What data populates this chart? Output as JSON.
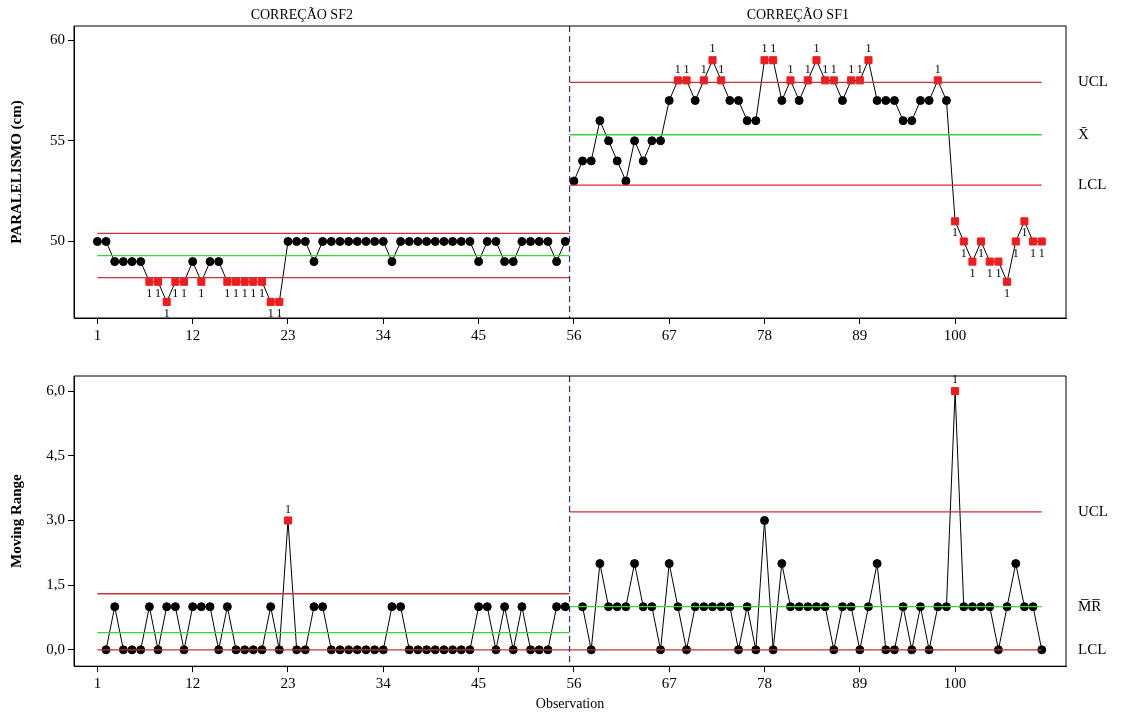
{
  "chart_data": [
    {
      "type": "line",
      "ylabel": "PARALELISMO (cm)",
      "xlim": [
        -1.7,
        112.8
      ],
      "xticks": [
        1,
        12,
        23,
        34,
        45,
        56,
        67,
        78,
        89,
        100
      ],
      "ylim": [
        46.2,
        60.7
      ],
      "yticks": [
        50,
        55,
        60
      ],
      "legend": false,
      "grid": false,
      "marker": "circle",
      "ref_lines": [
        {
          "axis": "x",
          "value": 55.5,
          "color": "#2a2a8a",
          "line_style": "dashed"
        }
      ],
      "annotations": [
        "CORREÇÃO SF2",
        "CORREÇÃO SF1",
        {
          "text": "1",
          "x": 7,
          "y": 48
        },
        {
          "text": "1",
          "x": 8,
          "y": 48
        },
        {
          "text": "1",
          "x": 9,
          "y": 47
        },
        {
          "text": "1",
          "x": 10,
          "y": 48
        },
        {
          "text": "1",
          "x": 11,
          "y": 48
        },
        {
          "text": "1",
          "x": 13,
          "y": 48
        },
        {
          "text": "1",
          "x": 16,
          "y": 48
        },
        {
          "text": "1",
          "x": 17,
          "y": 48
        },
        {
          "text": "1",
          "x": 18,
          "y": 48
        },
        {
          "text": "1",
          "x": 19,
          "y": 48
        },
        {
          "text": "1",
          "x": 20,
          "y": 48
        },
        {
          "text": "1",
          "x": 21,
          "y": 47
        },
        {
          "text": "1",
          "x": 22,
          "y": 47
        },
        {
          "text": "1",
          "x": 68,
          "y": 58
        },
        {
          "text": "1",
          "x": 69,
          "y": 58
        },
        {
          "text": "1",
          "x": 71,
          "y": 58
        },
        {
          "text": "1",
          "x": 72,
          "y": 59
        },
        {
          "text": "1",
          "x": 73,
          "y": 58
        },
        {
          "text": "1",
          "x": 78,
          "y": 59
        },
        {
          "text": "1",
          "x": 79,
          "y": 59
        },
        {
          "text": "1",
          "x": 81,
          "y": 58
        },
        {
          "text": "1",
          "x": 83,
          "y": 58
        },
        {
          "text": "1",
          "x": 84,
          "y": 59
        },
        {
          "text": "1",
          "x": 85,
          "y": 58
        },
        {
          "text": "1",
          "x": 86,
          "y": 58
        },
        {
          "text": "1",
          "x": 88,
          "y": 58
        },
        {
          "text": "1",
          "x": 89,
          "y": 58
        },
        {
          "text": "1",
          "x": 90,
          "y": 59
        },
        {
          "text": "1",
          "x": 98,
          "y": 58
        },
        {
          "text": "1",
          "x": 100,
          "y": 51
        },
        {
          "text": "1",
          "x": 101,
          "y": 50
        },
        {
          "text": "1",
          "x": 102,
          "y": 49
        },
        {
          "text": "1",
          "x": 103,
          "y": 50
        },
        {
          "text": "1",
          "x": 104,
          "y": 49
        },
        {
          "text": "1",
          "x": 105,
          "y": 49
        },
        {
          "text": "1",
          "x": 106,
          "y": 48
        },
        {
          "text": "1",
          "x": 107,
          "y": 50
        },
        {
          "text": "1",
          "x": 108,
          "y": 51
        },
        {
          "text": "1",
          "x": 109,
          "y": 50
        },
        {
          "text": "1",
          "x": 110,
          "y": 50
        }
      ],
      "series": [
        {
          "type": "line",
          "color": "#c8323a",
          "marker": "none",
          "x": [
            1,
            55.5
          ],
          "values": [
            50.4,
            50.4
          ]
        },
        {
          "type": "line",
          "color": "#3cd23c",
          "marker": "none",
          "x": [
            1,
            55.5
          ],
          "values": [
            49.3,
            49.3
          ]
        },
        {
          "type": "line",
          "color": "#c8323a",
          "marker": "none",
          "x": [
            1,
            55.5
          ],
          "values": [
            48.2,
            48.2
          ]
        },
        {
          "type": "line",
          "name": "UCL",
          "color": "#c8323a",
          "marker": "none",
          "x": [
            55.5,
            110
          ],
          "values": [
            57.9,
            57.9
          ]
        },
        {
          "type": "line",
          "name": "X̄",
          "color": "#3cd23c",
          "marker": "none",
          "x": [
            55.5,
            110
          ],
          "values": [
            55.3,
            55.3
          ]
        },
        {
          "type": "line",
          "name": "LCL",
          "color": "#c8323a",
          "marker": "none",
          "x": [
            55.5,
            110
          ],
          "values": [
            52.8,
            52.8
          ]
        },
        {
          "type": "line",
          "color": "#000000",
          "x": [
            1,
            2,
            3,
            4,
            5,
            6,
            7,
            8,
            9,
            10,
            11,
            12,
            13,
            14,
            15,
            16,
            17,
            18,
            19,
            20,
            21,
            22,
            23,
            24,
            25,
            26,
            27,
            28,
            29,
            30,
            31,
            32,
            33,
            34,
            35,
            36,
            37,
            38,
            39,
            40,
            41,
            42,
            43,
            44,
            45,
            46,
            47,
            48,
            49,
            50,
            51,
            52,
            53,
            54,
            55
          ],
          "values": [
            50,
            50,
            49,
            49,
            49,
            49,
            48,
            48,
            47,
            48,
            48,
            49,
            48,
            49,
            49,
            48,
            48,
            48,
            48,
            48,
            47,
            47,
            50,
            50,
            50,
            49,
            50,
            50,
            50,
            50,
            50,
            50,
            50,
            50,
            49,
            50,
            50,
            50,
            50,
            50,
            50,
            50,
            50,
            50,
            49,
            50,
            50,
            49,
            49,
            50,
            50,
            50,
            50,
            49,
            50
          ],
          "colors": [
            "#000000",
            "#000000",
            "#000000",
            "#000000",
            "#000000",
            "#000000",
            "#ee1c1c",
            "#ee1c1c",
            "#ee1c1c",
            "#ee1c1c",
            "#ee1c1c",
            "#000000",
            "#ee1c1c",
            "#000000",
            "#000000",
            "#ee1c1c",
            "#ee1c1c",
            "#ee1c1c",
            "#ee1c1c",
            "#ee1c1c",
            "#ee1c1c",
            "#ee1c1c",
            "#000000",
            "#000000",
            "#000000",
            "#000000",
            "#000000",
            "#000000",
            "#000000",
            "#000000",
            "#000000",
            "#000000",
            "#000000",
            "#000000",
            "#000000",
            "#000000",
            "#000000",
            "#000000",
            "#000000",
            "#000000",
            "#000000",
            "#000000",
            "#000000",
            "#000000",
            "#000000",
            "#000000",
            "#000000",
            "#000000",
            "#000000",
            "#000000",
            "#000000",
            "#000000",
            "#000000",
            "#000000",
            "#000000"
          ]
        },
        {
          "type": "line",
          "color": "#000000",
          "x": [
            56,
            57,
            58,
            59,
            60,
            61,
            62,
            63,
            64,
            65,
            66,
            67,
            68,
            69,
            70,
            71,
            72,
            73,
            74,
            75,
            76,
            77,
            78,
            79,
            80,
            81,
            82,
            83,
            84,
            85,
            86,
            87,
            88,
            89,
            90,
            91,
            92,
            93,
            94,
            95,
            96,
            97,
            98,
            99,
            100,
            101,
            102,
            103,
            104,
            105,
            106,
            107,
            108,
            109,
            110
          ],
          "values": [
            53,
            54,
            54,
            56,
            55,
            54,
            53,
            55,
            54,
            55,
            55,
            57,
            58,
            58,
            57,
            58,
            59,
            58,
            57,
            57,
            56,
            56,
            59,
            59,
            57,
            58,
            57,
            58,
            59,
            58,
            58,
            57,
            58,
            58,
            59,
            57,
            57,
            57,
            56,
            56,
            57,
            57,
            58,
            57,
            51,
            50,
            49,
            50,
            49,
            49,
            48,
            50,
            51,
            50,
            50
          ],
          "colors": [
            "#000000",
            "#000000",
            "#000000",
            "#000000",
            "#000000",
            "#000000",
            "#000000",
            "#000000",
            "#000000",
            "#000000",
            "#000000",
            "#000000",
            "#ee1c1c",
            "#ee1c1c",
            "#000000",
            "#ee1c1c",
            "#ee1c1c",
            "#ee1c1c",
            "#000000",
            "#000000",
            "#000000",
            "#000000",
            "#ee1c1c",
            "#ee1c1c",
            "#000000",
            "#ee1c1c",
            "#000000",
            "#ee1c1c",
            "#ee1c1c",
            "#ee1c1c",
            "#ee1c1c",
            "#000000",
            "#ee1c1c",
            "#ee1c1c",
            "#ee1c1c",
            "#000000",
            "#000000",
            "#000000",
            "#000000",
            "#000000",
            "#000000",
            "#000000",
            "#ee1c1c",
            "#000000",
            "#ee1c1c",
            "#ee1c1c",
            "#ee1c1c",
            "#ee1c1c",
            "#ee1c1c",
            "#ee1c1c",
            "#ee1c1c",
            "#ee1c1c",
            "#ee1c1c",
            "#ee1c1c",
            "#ee1c1c"
          ]
        }
      ]
    },
    {
      "type": "line",
      "ylabel": "Moving Range",
      "xlabel": "Observation",
      "xlim": [
        -1.7,
        112.8
      ],
      "xticks": [
        1,
        12,
        23,
        34,
        45,
        56,
        67,
        78,
        89,
        100
      ],
      "ylim": [
        -0.38,
        6.35
      ],
      "yticks": [
        {
          "value": 0,
          "label": "0,0"
        },
        {
          "value": 1.5,
          "label": "1,5"
        },
        {
          "value": 3,
          "label": "3,0"
        },
        {
          "value": 4.5,
          "label": "4,5"
        },
        {
          "value": 6,
          "label": "6,0"
        }
      ],
      "legend": false,
      "grid": false,
      "marker": "circle",
      "ref_lines": [
        {
          "axis": "x",
          "value": 55.5,
          "color": "#2a2a8a",
          "line_style": "dashed"
        }
      ],
      "annotations": [
        {
          "text": "1",
          "x": 23,
          "y": 3
        },
        {
          "text": "1",
          "x": 100,
          "y": 6
        }
      ],
      "series": [
        {
          "type": "line",
          "color": "#c8323a",
          "marker": "none",
          "x": [
            1,
            55.5
          ],
          "values": [
            1.3,
            1.3
          ]
        },
        {
          "type": "line",
          "color": "#3cd23c",
          "marker": "none",
          "x": [
            1,
            55.5
          ],
          "values": [
            0.4,
            0.4
          ]
        },
        {
          "type": "line",
          "name": "UCL",
          "color": "#c8323a",
          "marker": "none",
          "x": [
            55.5,
            110
          ],
          "values": [
            3.2,
            3.2
          ]
        },
        {
          "type": "line",
          "name": "M̅R̅",
          "color": "#3cd23c",
          "marker": "none",
          "x": [
            55.5,
            110
          ],
          "values": [
            1.0,
            1.0
          ]
        },
        {
          "type": "line",
          "name": "LCL",
          "color": "#c8323a",
          "marker": "none",
          "x": [
            1,
            110
          ],
          "values": [
            0,
            0
          ]
        },
        {
          "type": "line",
          "color": "#000000",
          "x": [
            2,
            3,
            4,
            5,
            6,
            7,
            8,
            9,
            10,
            11,
            12,
            13,
            14,
            15,
            16,
            17,
            18,
            19,
            20,
            21,
            22,
            23,
            24,
            25,
            26,
            27,
            28,
            29,
            30,
            31,
            32,
            33,
            34,
            35,
            36,
            37,
            38,
            39,
            40,
            41,
            42,
            43,
            44,
            45,
            46,
            47,
            48,
            49,
            50,
            51,
            52,
            53,
            54,
            55
          ],
          "values": [
            0,
            1,
            0,
            0,
            0,
            1,
            0,
            1,
            1,
            0,
            1,
            1,
            1,
            0,
            1,
            0,
            0,
            0,
            0,
            1,
            0,
            3,
            0,
            0,
            1,
            1,
            0,
            0,
            0,
            0,
            0,
            0,
            0,
            1,
            1,
            0,
            0,
            0,
            0,
            0,
            0,
            0,
            0,
            1,
            1,
            0,
            1,
            0,
            1,
            0,
            0,
            0,
            1,
            1
          ],
          "colors": [
            "#000000",
            "#000000",
            "#000000",
            "#000000",
            "#000000",
            "#000000",
            "#000000",
            "#000000",
            "#000000",
            "#000000",
            "#000000",
            "#000000",
            "#000000",
            "#000000",
            "#000000",
            "#000000",
            "#000000",
            "#000000",
            "#000000",
            "#000000",
            "#000000",
            "#ee1c1c",
            "#000000",
            "#000000",
            "#000000",
            "#000000",
            "#000000",
            "#000000",
            "#000000",
            "#000000",
            "#000000",
            "#000000",
            "#000000",
            "#000000",
            "#000000",
            "#000000",
            "#000000",
            "#000000",
            "#000000",
            "#000000",
            "#000000",
            "#000000",
            "#000000",
            "#000000",
            "#000000",
            "#000000",
            "#000000",
            "#000000",
            "#000000",
            "#000000",
            "#000000",
            "#000000",
            "#000000",
            "#000000"
          ]
        },
        {
          "type": "line",
          "color": "#000000",
          "x": [
            57,
            58,
            59,
            60,
            61,
            62,
            63,
            64,
            65,
            66,
            67,
            68,
            69,
            70,
            71,
            72,
            73,
            74,
            75,
            76,
            77,
            78,
            79,
            80,
            81,
            82,
            83,
            84,
            85,
            86,
            87,
            88,
            89,
            90,
            91,
            92,
            93,
            94,
            95,
            96,
            97,
            98,
            99,
            100,
            101,
            102,
            103,
            104,
            105,
            106,
            107,
            108,
            109,
            110
          ],
          "values": [
            1,
            0,
            2,
            1,
            1,
            1,
            2,
            1,
            1,
            0,
            2,
            1,
            0,
            1,
            1,
            1,
            1,
            1,
            0,
            1,
            0,
            3,
            0,
            2,
            1,
            1,
            1,
            1,
            1,
            0,
            1,
            1,
            0,
            1,
            2,
            0,
            0,
            1,
            0,
            1,
            0,
            1,
            1,
            6,
            1,
            1,
            1,
            1,
            0,
            1,
            2,
            1,
            1,
            0
          ],
          "colors": [
            "#000000",
            "#000000",
            "#000000",
            "#000000",
            "#000000",
            "#000000",
            "#000000",
            "#000000",
            "#000000",
            "#000000",
            "#000000",
            "#000000",
            "#000000",
            "#000000",
            "#000000",
            "#000000",
            "#000000",
            "#000000",
            "#000000",
            "#000000",
            "#000000",
            "#000000",
            "#000000",
            "#000000",
            "#000000",
            "#000000",
            "#000000",
            "#000000",
            "#000000",
            "#000000",
            "#000000",
            "#000000",
            "#000000",
            "#000000",
            "#000000",
            "#000000",
            "#000000",
            "#000000",
            "#000000",
            "#000000",
            "#000000",
            "#000000",
            "#000000",
            "#ee1c1c",
            "#000000",
            "#000000",
            "#000000",
            "#000000",
            "#000000",
            "#000000",
            "#000000",
            "#000000",
            "#000000",
            "#000000"
          ]
        }
      ]
    }
  ]
}
